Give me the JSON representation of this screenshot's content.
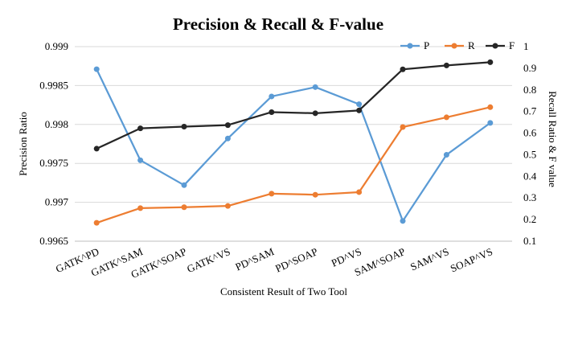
{
  "chart_data": {
    "type": "line",
    "title": "Precision & Recall & F-value",
    "xlabel": "Consistent Result of Two Tool",
    "ylabel_left": "Precision Ratio",
    "ylabel_right": "Recall Ratio & F value",
    "categories": [
      "GATK^PD",
      "GATK^SAM",
      "GATK^SOAP",
      "GATK^VS",
      "PD^SAM",
      "PD^SOAP",
      "PD^VS",
      "SAM^SOAP",
      "SAM^VS",
      "SOAP^VS"
    ],
    "y_left": {
      "min": 0.9965,
      "max": 0.999,
      "ticks": [
        "0.9965",
        "0.997",
        "0.9975",
        "0.998",
        "0.9985",
        "0.999"
      ]
    },
    "y_right": {
      "min": 0.1,
      "max": 1,
      "ticks": [
        "0.1",
        "0.2",
        "0.3",
        "0.4",
        "0.5",
        "0.6",
        "0.7",
        "0.8",
        "0.9",
        "1"
      ]
    },
    "legend_position": "top-right",
    "grid": true,
    "series": [
      {
        "name": "P",
        "axis": "left",
        "color": "#5b9bd5",
        "values": [
          0.99871,
          0.99754,
          0.99722,
          0.99782,
          0.99836,
          0.99848,
          0.99826,
          0.99676,
          0.99761,
          0.99802
        ]
      },
      {
        "name": "R",
        "axis": "right",
        "color": "#ed7d31",
        "values": [
          0.185,
          0.253,
          0.257,
          0.263,
          0.32,
          0.315,
          0.327,
          0.628,
          0.673,
          0.72
        ]
      },
      {
        "name": "F",
        "axis": "right",
        "color": "#262626",
        "values": [
          0.528,
          0.622,
          0.63,
          0.637,
          0.697,
          0.692,
          0.705,
          0.895,
          0.913,
          0.928
        ]
      }
    ]
  }
}
